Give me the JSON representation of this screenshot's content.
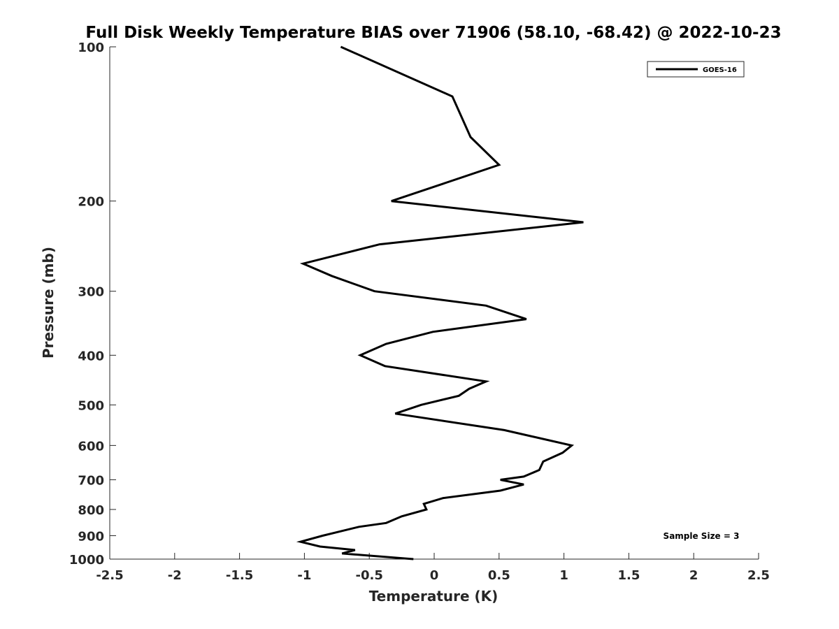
{
  "chart_data": {
    "type": "line",
    "title": "Full Disk Weekly Temperature BIAS over 71906 (58.10, -68.42) @ 2022-10-23",
    "xlabel": "Temperature (K)",
    "ylabel": "Pressure (mb)",
    "xlim": [
      -2.5,
      2.5
    ],
    "ylim": [
      100,
      1000
    ],
    "y_scale": "log",
    "y_reversed": true,
    "grid": false,
    "x_ticks": [
      -2.5,
      -2,
      -1.5,
      -1,
      -0.5,
      0,
      0.5,
      1,
      1.5,
      2,
      2.5
    ],
    "x_tick_labels": [
      "-2.5",
      "-2",
      "-1.5",
      "-1",
      "-0.5",
      "0",
      "0.5",
      "1",
      "1.5",
      "2",
      "2.5"
    ],
    "y_ticks": [
      100,
      200,
      300,
      400,
      500,
      600,
      700,
      800,
      900,
      1000
    ],
    "y_tick_labels": [
      "100",
      "200",
      "300",
      "400",
      "500",
      "600",
      "700",
      "800",
      "900",
      "1000"
    ],
    "legend_position": "top-right",
    "series": [
      {
        "name": "GOES-16",
        "color": "#000000",
        "points": [
          {
            "x": -0.72,
            "y": 100
          },
          {
            "x": 0.14,
            "y": 125
          },
          {
            "x": 0.28,
            "y": 150
          },
          {
            "x": 0.5,
            "y": 170
          },
          {
            "x": 0.07,
            "y": 185
          },
          {
            "x": -0.33,
            "y": 200
          },
          {
            "x": 1.15,
            "y": 220
          },
          {
            "x": -0.42,
            "y": 243
          },
          {
            "x": -1.01,
            "y": 265
          },
          {
            "x": -0.79,
            "y": 280
          },
          {
            "x": -0.46,
            "y": 300
          },
          {
            "x": 0.4,
            "y": 320
          },
          {
            "x": 0.71,
            "y": 340
          },
          {
            "x": -0.01,
            "y": 360
          },
          {
            "x": -0.37,
            "y": 380
          },
          {
            "x": -0.57,
            "y": 400
          },
          {
            "x": -0.38,
            "y": 420
          },
          {
            "x": 0.4,
            "y": 450
          },
          {
            "x": 0.27,
            "y": 465
          },
          {
            "x": 0.19,
            "y": 480
          },
          {
            "x": -0.1,
            "y": 500
          },
          {
            "x": -0.3,
            "y": 520
          },
          {
            "x": 0.54,
            "y": 560
          },
          {
            "x": 1.06,
            "y": 600
          },
          {
            "x": 0.99,
            "y": 620
          },
          {
            "x": 0.84,
            "y": 645
          },
          {
            "x": 0.81,
            "y": 670
          },
          {
            "x": 0.69,
            "y": 690
          },
          {
            "x": 0.51,
            "y": 700
          },
          {
            "x": 0.69,
            "y": 715
          },
          {
            "x": 0.51,
            "y": 735
          },
          {
            "x": 0.07,
            "y": 760
          },
          {
            "x": -0.08,
            "y": 780
          },
          {
            "x": -0.06,
            "y": 800
          },
          {
            "x": -0.25,
            "y": 825
          },
          {
            "x": -0.37,
            "y": 850
          },
          {
            "x": -0.58,
            "y": 865
          },
          {
            "x": -0.86,
            "y": 900
          },
          {
            "x": -1.03,
            "y": 925
          },
          {
            "x": -0.88,
            "y": 945
          },
          {
            "x": -0.61,
            "y": 960
          },
          {
            "x": -0.71,
            "y": 975
          },
          {
            "x": -0.16,
            "y": 1000
          }
        ]
      }
    ],
    "annotations": [
      {
        "text": "Sample Size = 3"
      }
    ]
  }
}
